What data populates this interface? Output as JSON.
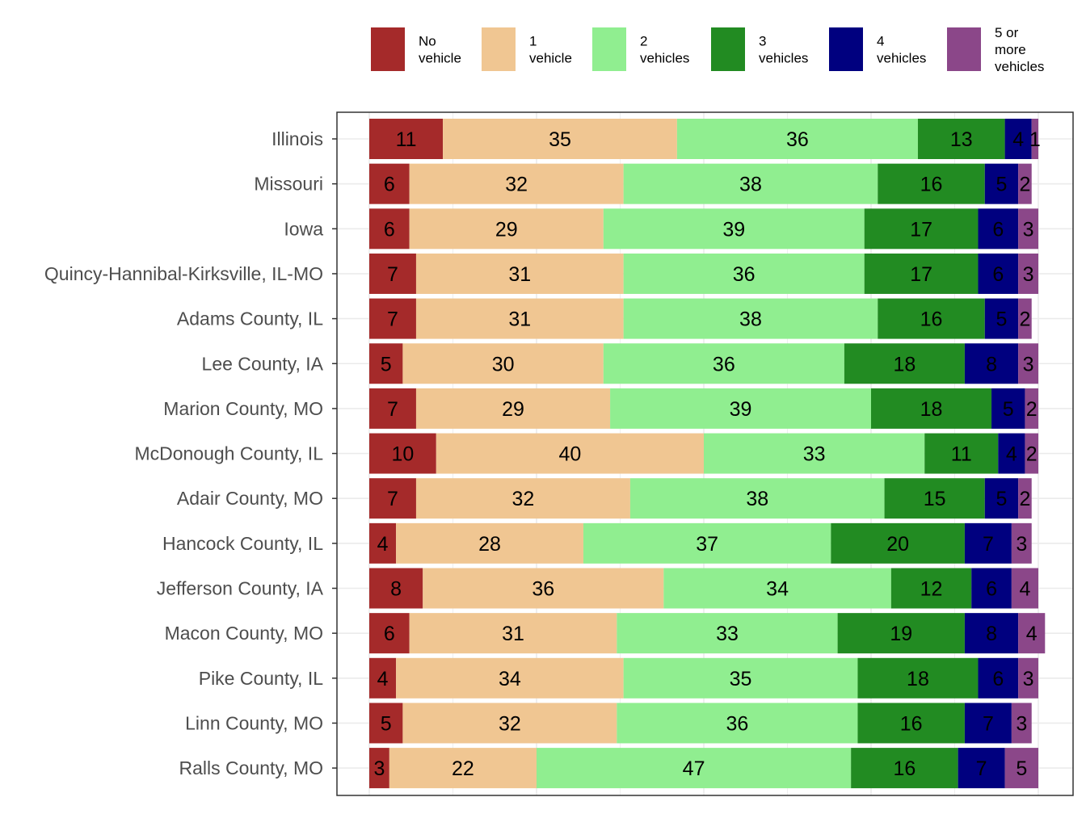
{
  "chart_data": {
    "type": "bar",
    "orientation": "horizontal",
    "stacked": true,
    "title": "",
    "xlabel": "",
    "ylabel": "",
    "xlim": [
      0,
      100
    ],
    "grid": true,
    "legend_position": "top",
    "categories": [
      "Illinois",
      "Missouri",
      "Iowa",
      "Quincy-Hannibal-Kirksville, IL-MO",
      "Adams County, IL",
      "Lee County, IA",
      "Marion County, MO",
      "McDonough County, IL",
      "Adair County, MO",
      "Hancock County, IL",
      "Jefferson County, IA",
      "Macon County, MO",
      "Pike County, IL",
      "Linn County, MO",
      "Ralls County, MO"
    ],
    "series": [
      {
        "name": "No vehicle",
        "label_lines": [
          "No",
          "vehicle"
        ],
        "color": "#a52a2a",
        "values": [
          11,
          6,
          6,
          7,
          7,
          5,
          7,
          10,
          7,
          4,
          8,
          6,
          4,
          5,
          3
        ]
      },
      {
        "name": "1 vehicle",
        "label_lines": [
          "1",
          "vehicle"
        ],
        "color": "#f0c692",
        "values": [
          35,
          32,
          29,
          31,
          31,
          30,
          29,
          40,
          32,
          28,
          36,
          31,
          34,
          32,
          22
        ]
      },
      {
        "name": "2 vehicles",
        "label_lines": [
          "2",
          "vehicles"
        ],
        "color": "#90ee90",
        "values": [
          36,
          38,
          39,
          36,
          38,
          36,
          39,
          33,
          38,
          37,
          34,
          33,
          35,
          36,
          47
        ]
      },
      {
        "name": "3 vehicles",
        "label_lines": [
          "3",
          "vehicles"
        ],
        "color": "#228b22",
        "values": [
          13,
          16,
          17,
          17,
          16,
          18,
          18,
          11,
          15,
          20,
          12,
          19,
          18,
          16,
          16
        ]
      },
      {
        "name": "4 vehicles",
        "label_lines": [
          "4",
          "vehicles"
        ],
        "color": "#00007f",
        "values": [
          4,
          5,
          6,
          6,
          5,
          8,
          5,
          4,
          5,
          7,
          6,
          8,
          6,
          7,
          7
        ]
      },
      {
        "name": "5 or more vehicles",
        "label_lines": [
          "5 or",
          "more",
          "vehicles"
        ],
        "color": "#8b4789",
        "values": [
          1,
          2,
          3,
          3,
          2,
          3,
          2,
          2,
          2,
          3,
          4,
          4,
          3,
          3,
          5
        ]
      }
    ]
  }
}
